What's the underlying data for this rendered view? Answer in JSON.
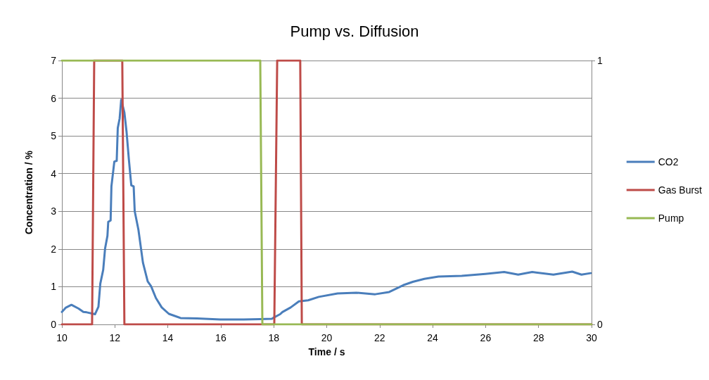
{
  "chart_data": {
    "type": "line",
    "title": "Pump vs. Diffusion",
    "xlabel": "Time / s",
    "ylabel": "Concentration / %",
    "xlim": [
      10,
      30
    ],
    "xticks": [
      10,
      12,
      14,
      16,
      18,
      20,
      22,
      24,
      26,
      28,
      30
    ],
    "ylim": [
      0,
      7
    ],
    "yticks": [
      0,
      1,
      2,
      3,
      4,
      5,
      6,
      7
    ],
    "y2lim": [
      0,
      1
    ],
    "y2ticks": [
      0,
      1
    ],
    "grid": "y",
    "legend": "right",
    "marker": "none",
    "line_style": "solid",
    "series": [
      {
        "name": "CO2",
        "color": "#4a7ebb",
        "x": [
          10.0,
          10.14,
          10.36,
          10.63,
          10.81,
          10.94,
          11.25,
          11.38,
          11.45,
          11.56,
          11.63,
          11.72,
          11.75,
          11.84,
          11.87,
          11.98,
          12.07,
          12.11,
          12.18,
          12.24,
          12.36,
          12.44,
          12.53,
          12.62,
          12.71,
          12.75,
          12.89,
          13.06,
          13.24,
          13.37,
          13.55,
          13.77,
          14.04,
          14.48,
          15.1,
          15.98,
          16.87,
          17.49,
          17.93,
          18.02,
          18.24,
          18.33,
          18.64,
          18.95,
          19.3,
          19.7,
          20.41,
          21.12,
          21.83,
          22.36,
          22.89,
          23.25,
          23.69,
          24.22,
          25.1,
          25.99,
          26.7,
          27.23,
          27.76,
          28.56,
          29.27,
          29.62,
          29.97
        ],
        "values": [
          0.33,
          0.44,
          0.52,
          0.42,
          0.33,
          0.32,
          0.27,
          0.47,
          1.08,
          1.45,
          2.01,
          2.35,
          2.72,
          2.76,
          3.66,
          4.32,
          4.34,
          5.21,
          5.46,
          5.96,
          5.62,
          5.12,
          4.37,
          3.69,
          3.66,
          3.0,
          2.51,
          1.64,
          1.14,
          1.01,
          0.7,
          0.45,
          0.28,
          0.17,
          0.16,
          0.13,
          0.13,
          0.14,
          0.15,
          0.19,
          0.27,
          0.33,
          0.45,
          0.61,
          0.64,
          0.73,
          0.82,
          0.84,
          0.8,
          0.86,
          1.04,
          1.13,
          1.21,
          1.27,
          1.29,
          1.34,
          1.39,
          1.32,
          1.39,
          1.32,
          1.4,
          1.32,
          1.36
        ]
      },
      {
        "name": "Gas Burst",
        "color": "#be4b48",
        "axis": "y2",
        "x": [
          10,
          11.14,
          11.22,
          12.28,
          12.36,
          18.02,
          18.13,
          19.0,
          19.06,
          30
        ],
        "values": [
          0,
          0,
          1,
          1,
          0,
          0,
          1,
          1,
          0,
          0
        ]
      },
      {
        "name": "Pump",
        "color": "#98b954",
        "axis": "y2",
        "x": [
          10,
          17.49,
          17.57,
          30
        ],
        "values": [
          1,
          1,
          0,
          0
        ]
      }
    ]
  }
}
